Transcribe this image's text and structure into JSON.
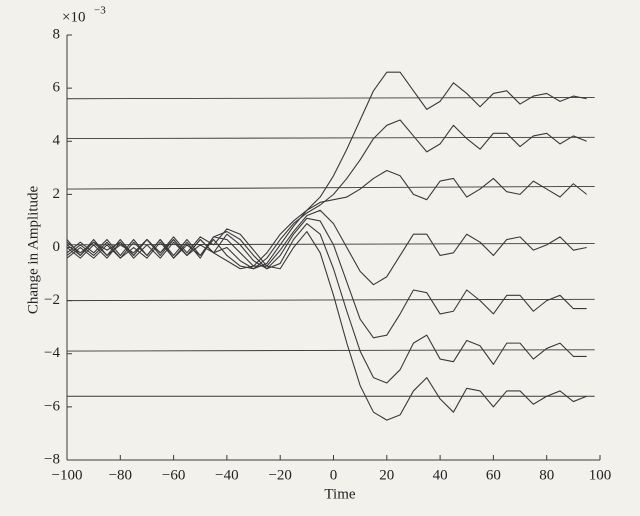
{
  "chart_data": {
    "type": "line",
    "xlabel": "Time",
    "ylabel": "Change in Amplitude",
    "multiplier": {
      "base": "×10",
      "exponent": "−3"
    },
    "xlim": [
      -100,
      100
    ],
    "ylim": [
      -8,
      8
    ],
    "xticks": [
      {
        "value": -100,
        "label": "−100"
      },
      {
        "value": -80,
        "label": "−80"
      },
      {
        "value": -60,
        "label": "−60"
      },
      {
        "value": -40,
        "label": "−40"
      },
      {
        "value": -20,
        "label": "−20"
      },
      0,
      20,
      40,
      60,
      80,
      100
    ],
    "yticks": [
      {
        "value": -8,
        "label": "−8"
      },
      {
        "value": -6,
        "label": "−6"
      },
      {
        "value": -4,
        "label": "−4"
      },
      {
        "value": -2,
        "label": "−2"
      },
      0,
      2,
      4,
      6,
      8
    ],
    "grid": false,
    "color": "#3a3a3a",
    "x": [
      -100,
      -95,
      -90,
      -85,
      -80,
      -75,
      -70,
      -65,
      -60,
      -55,
      -50,
      -45,
      -40,
      -35,
      -30,
      -25,
      -20,
      -15,
      -10,
      -5,
      0,
      5,
      10,
      15,
      20,
      25,
      30,
      35,
      40,
      45,
      50,
      55,
      60,
      65,
      70,
      75,
      80,
      85,
      90,
      95
    ],
    "series": [
      {
        "values": [
          0.3,
          -0.3,
          0.3,
          -0.3,
          0.3,
          -0.3,
          0.3,
          -0.3,
          0.3,
          -0.3,
          0.3,
          -0.2,
          -0.5,
          -0.8,
          -0.7,
          -0.2,
          0.5,
          1.0,
          1.4,
          1.9,
          2.7,
          3.7,
          4.8,
          5.9,
          6.6,
          6.6,
          5.9,
          5.2,
          5.5,
          6.2,
          5.8,
          5.3,
          5.8,
          5.9,
          5.4,
          5.7,
          5.8,
          5.5,
          5.7,
          5.6
        ]
      },
      {
        "values": [
          -0.2,
          0.2,
          -0.2,
          0.3,
          -0.3,
          0.3,
          -0.3,
          0.3,
          -0.3,
          0.3,
          -0.3,
          0.3,
          -0.3,
          -0.7,
          -0.8,
          -0.4,
          0.3,
          0.9,
          1.3,
          1.6,
          2.0,
          2.6,
          3.3,
          4.1,
          4.6,
          4.8,
          4.2,
          3.6,
          3.9,
          4.6,
          4.1,
          3.7,
          4.3,
          4.3,
          3.8,
          4.2,
          4.3,
          3.9,
          4.2,
          4.0
        ]
      },
      {
        "values": [
          0.1,
          -0.3,
          0.2,
          -0.3,
          0.1,
          -0.2,
          0.3,
          -0.2,
          0.3,
          -0.3,
          0.3,
          -0.2,
          0,
          -0.5,
          -0.8,
          -0.6,
          0.1,
          0.8,
          1.4,
          1.7,
          1.8,
          1.9,
          2.2,
          2.6,
          2.9,
          2.7,
          2.0,
          1.8,
          2.5,
          2.6,
          1.9,
          2.2,
          2.6,
          2.1,
          2.0,
          2.5,
          2.2,
          1.9,
          2.4,
          2.0
        ]
      },
      {
        "values": [
          -0.3,
          0.1,
          -0.3,
          0.2,
          -0.4,
          0.2,
          -0.3,
          0.3,
          -0.4,
          0.2,
          -0.4,
          0.4,
          0.3,
          -0.2,
          -0.7,
          -0.7,
          -0.1,
          0.6,
          1.2,
          1.4,
          0.9,
          0,
          -0.9,
          -1.4,
          -1.1,
          -0.3,
          0.5,
          0.5,
          -0.3,
          -0.2,
          0.5,
          0.2,
          -0.3,
          0.3,
          0.4,
          -0.1,
          0.1,
          0.4,
          -0.1,
          0
        ]
      },
      {
        "values": [
          0,
          -0.4,
          0.1,
          -0.4,
          0.2,
          -0.4,
          0.1,
          -0.4,
          0.2,
          -0.3,
          0.1,
          -0.2,
          0.5,
          0.1,
          -0.5,
          -0.8,
          -0.3,
          0.5,
          1.1,
          1.0,
          0.1,
          -1.3,
          -2.7,
          -3.4,
          -3.3,
          -2.5,
          -1.6,
          -1.7,
          -2.5,
          -2.4,
          -1.6,
          -2.0,
          -2.5,
          -1.8,
          -1.8,
          -2.4,
          -2.0,
          -1.8,
          -2.3,
          -2.3
        ]
      },
      {
        "values": [
          -0.4,
          0,
          -0.4,
          0.1,
          -0.4,
          0,
          -0.4,
          0.2,
          -0.4,
          0.1,
          -0.3,
          0.4,
          0.6,
          0.3,
          -0.3,
          -0.8,
          -0.6,
          0.3,
          0.9,
          0.5,
          -0.8,
          -2.4,
          -3.9,
          -4.9,
          -5.1,
          -4.6,
          -3.6,
          -3.3,
          -4.2,
          -4.3,
          -3.5,
          -3.7,
          -4.4,
          -3.6,
          -3.6,
          -4.2,
          -3.8,
          -3.6,
          -4.1,
          -4.1
        ]
      },
      {
        "values": [
          0.2,
          -0.2,
          0.2,
          -0.1,
          0.2,
          -0.3,
          0.3,
          -0.2,
          0.4,
          -0.2,
          0.4,
          0.1,
          0.7,
          0.5,
          -0.1,
          -0.7,
          -0.8,
          0,
          0.6,
          -0.2,
          -1.8,
          -3.6,
          -5.2,
          -6.2,
          -6.5,
          -6.3,
          -5.4,
          -4.9,
          -5.7,
          -6.2,
          -5.3,
          -5.4,
          -6.0,
          -5.4,
          -5.4,
          -5.9,
          -5.6,
          -5.4,
          -5.8,
          -5.6
        ]
      }
    ],
    "levels": {
      "x": [
        -100,
        98
      ],
      "lines": [
        [
          5.6,
          5.65
        ],
        [
          4.1,
          4.15
        ],
        [
          2.2,
          2.3
        ],
        [
          0.1,
          0.15
        ],
        [
          -2.0,
          -1.95
        ],
        [
          -3.9,
          -3.85
        ],
        [
          -5.6,
          -5.6
        ]
      ]
    }
  }
}
